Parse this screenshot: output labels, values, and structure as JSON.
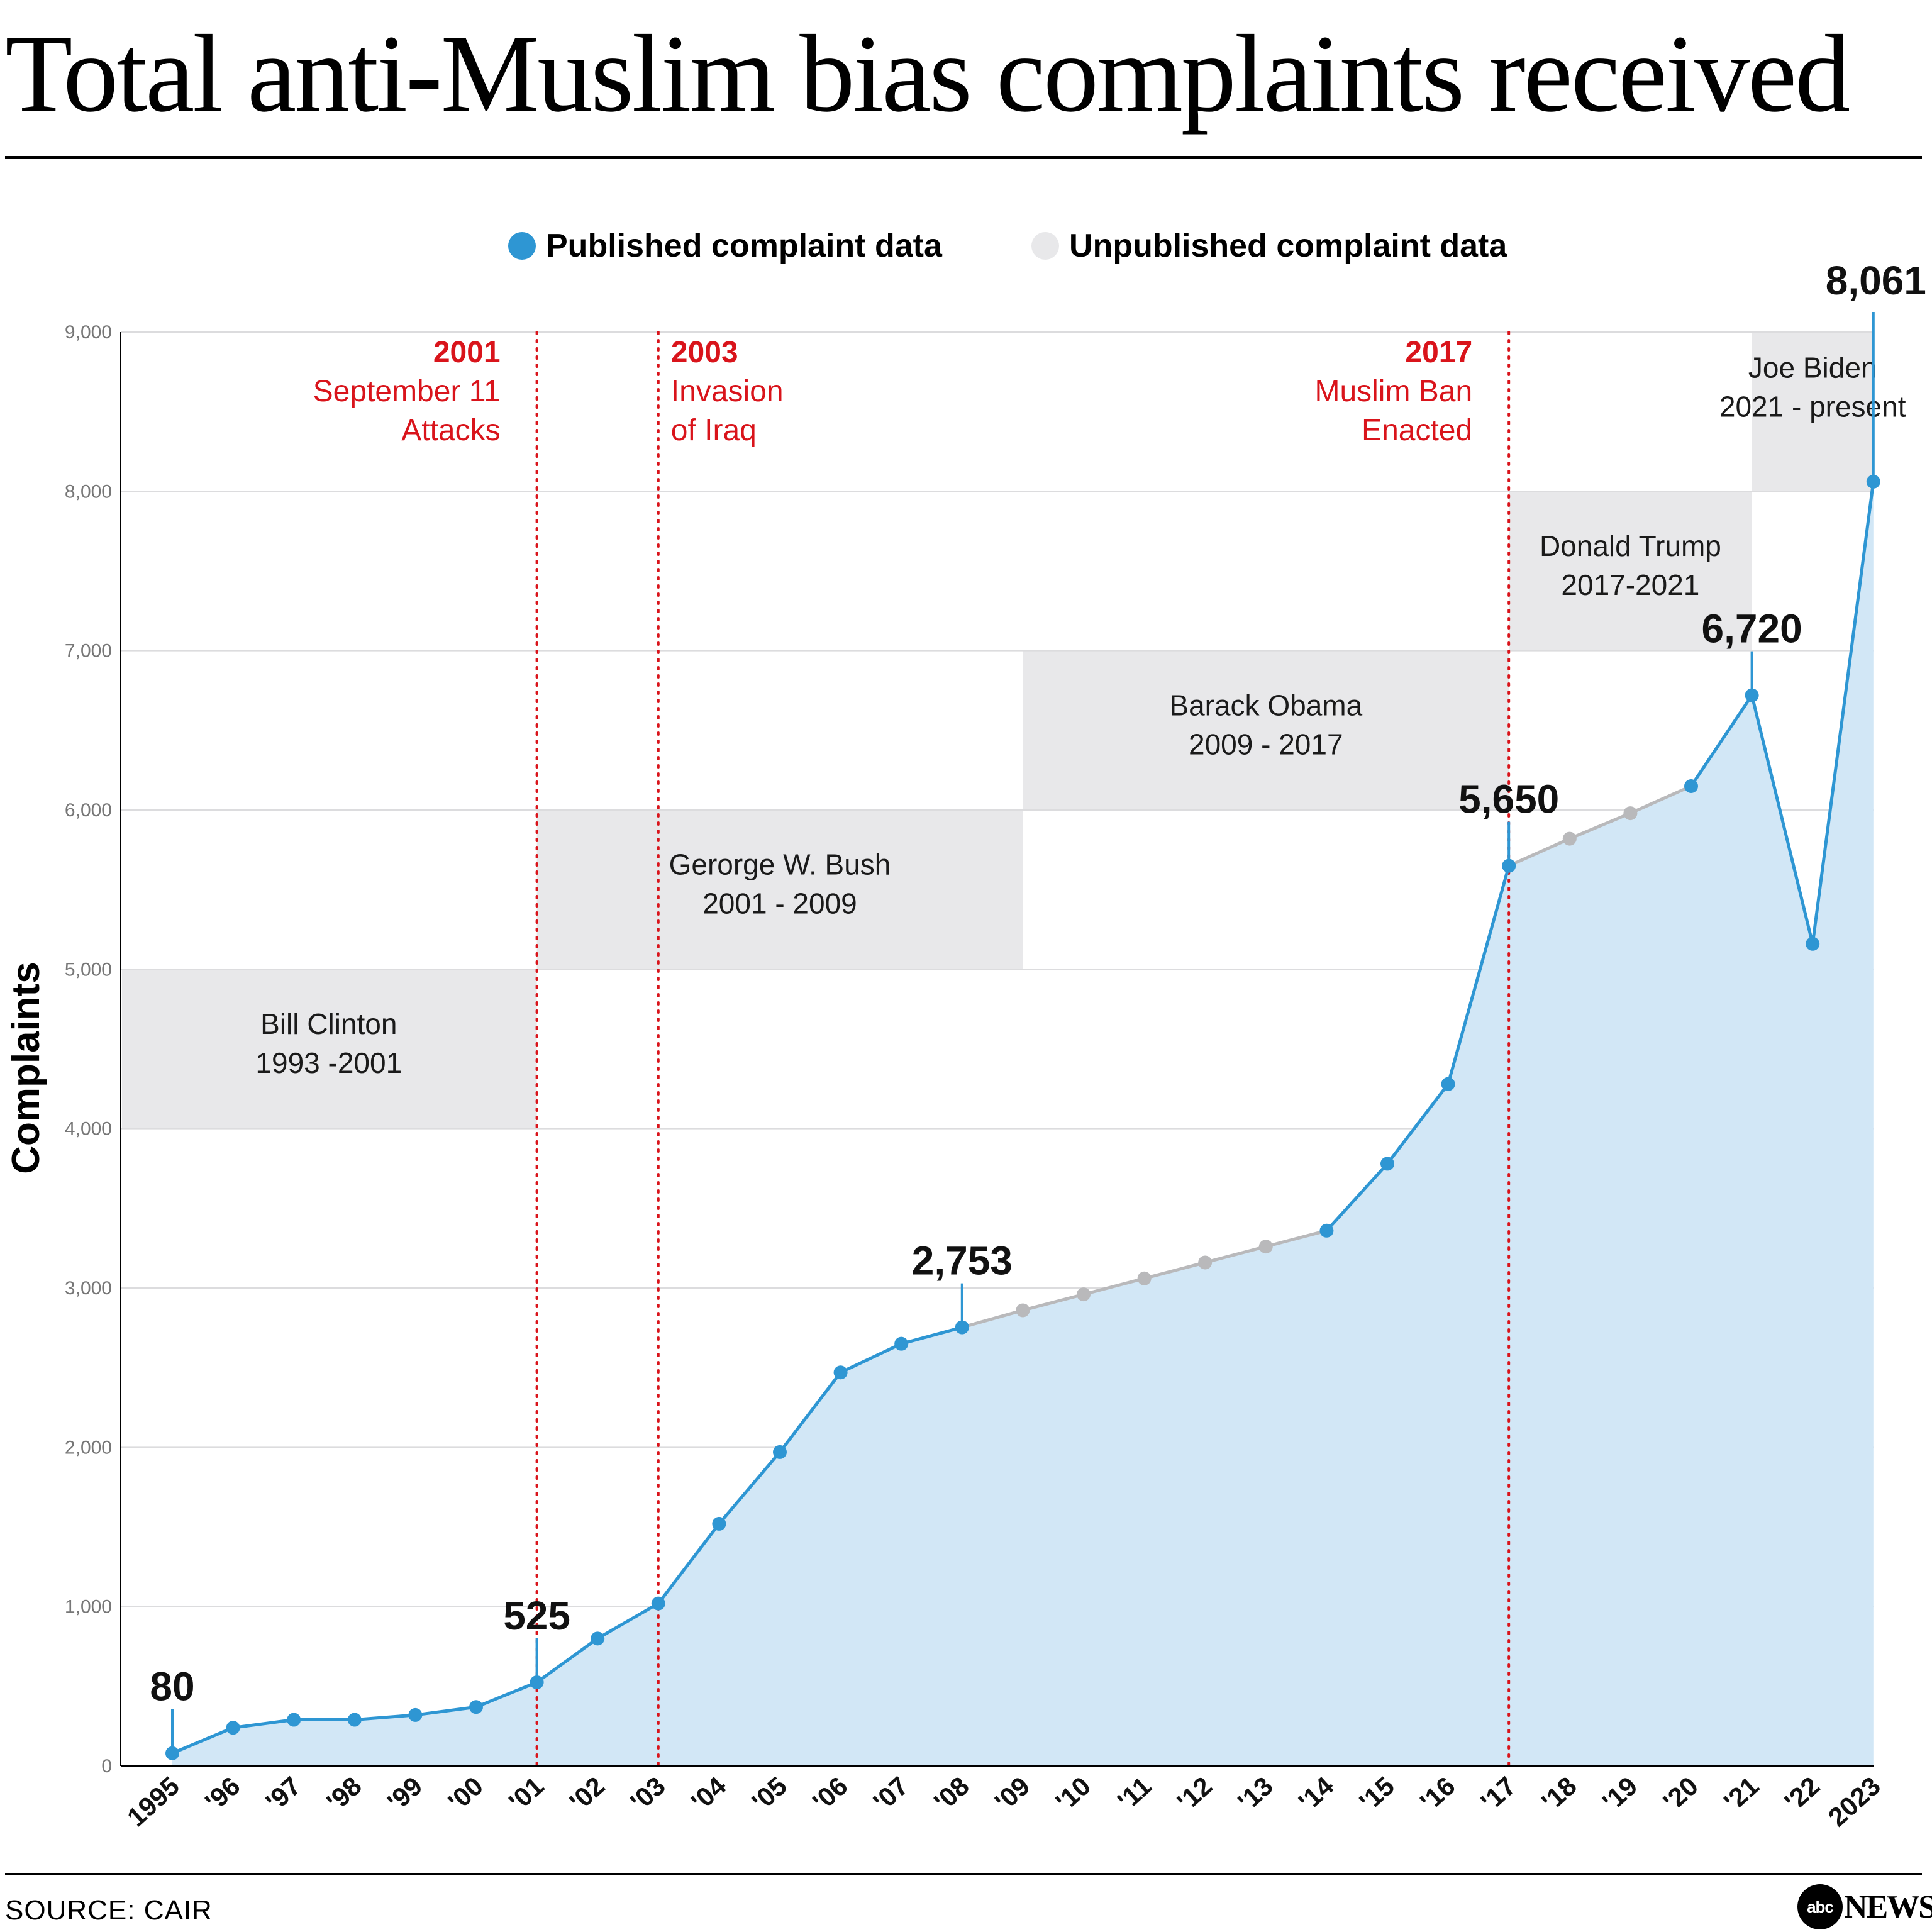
{
  "title": "Total anti-Muslim bias complaints received",
  "legend": {
    "published": "Published complaint data",
    "unpublished": "Unpublished complaint data"
  },
  "colors": {
    "published": "#2e96d3",
    "unpublished": "#b9b9bb",
    "area": "#d2e7f6",
    "band": "#e8e8ea",
    "event": "#d9141b"
  },
  "source": "SOURCE: CAIR",
  "brand": {
    "logo": "abc",
    "word": "NEWS"
  },
  "chart_data": {
    "type": "area",
    "title": "Total anti-Muslim bias complaints received",
    "xlabel": "",
    "ylabel": "Complaints",
    "ylim": [
      0,
      9000
    ],
    "yticks": [
      0,
      1000,
      2000,
      3000,
      4000,
      5000,
      6000,
      7000,
      8000,
      9000
    ],
    "ytick_labels": [
      "0",
      "1,000",
      "2,000",
      "3,000",
      "4,000",
      "5,000",
      "6,000",
      "7,000",
      "8,000",
      "9,000"
    ],
    "grid": true,
    "categories": [
      "1995",
      "'96",
      "'97",
      "'98",
      "'99",
      "'00",
      "'01",
      "'02",
      "'03",
      "'04",
      "'05",
      "'06",
      "'07",
      "'08",
      "'09",
      "'10",
      "'11",
      "'12",
      "'13",
      "'14",
      "'15",
      "'16",
      "'17",
      "'18",
      "'19",
      "'20",
      "'21",
      "'22",
      "2023"
    ],
    "years": [
      1995,
      1996,
      1997,
      1998,
      1999,
      2000,
      2001,
      2002,
      2003,
      2004,
      2005,
      2006,
      2007,
      2008,
      2009,
      2010,
      2011,
      2012,
      2013,
      2014,
      2015,
      2016,
      2017,
      2018,
      2019,
      2020,
      2021,
      2022,
      2023
    ],
    "values": [
      80,
      240,
      290,
      290,
      320,
      370,
      525,
      800,
      1020,
      1520,
      1970,
      2470,
      2650,
      2753,
      2860,
      2960,
      3060,
      3160,
      3260,
      3360,
      3780,
      4280,
      5650,
      5820,
      5980,
      6150,
      6720,
      5160,
      8061
    ],
    "published": [
      true,
      true,
      true,
      true,
      true,
      true,
      true,
      true,
      true,
      true,
      true,
      true,
      true,
      true,
      false,
      false,
      false,
      false,
      false,
      true,
      true,
      true,
      true,
      false,
      false,
      true,
      true,
      true,
      true
    ],
    "series": [
      {
        "name": "Published complaint data",
        "status": "published"
      },
      {
        "name": "Unpublished complaint data",
        "status": "unpublished"
      }
    ],
    "callouts": [
      {
        "year": 1995,
        "label": "80"
      },
      {
        "year": 2001,
        "label": "525"
      },
      {
        "year": 2008,
        "label": "2,753"
      },
      {
        "year": 2017,
        "label": "5,650"
      },
      {
        "year": 2021,
        "label": "6,720"
      },
      {
        "year": 2023,
        "label": "8,061"
      }
    ],
    "events": [
      {
        "year": 2001,
        "label_year": "2001",
        "lines": [
          "September 11",
          "Attacks"
        ],
        "align": "left-of-line"
      },
      {
        "year": 2003,
        "label_year": "2003",
        "lines": [
          "Invasion",
          "of Iraq"
        ],
        "align": "right-of-line"
      },
      {
        "year": 2017,
        "label_year": "2017",
        "lines": [
          "Muslim Ban",
          "Enacted"
        ],
        "align": "left-of-line"
      }
    ],
    "presidencies": [
      {
        "name": "Bill Clinton",
        "term": "1993 -2001",
        "x_start": 1994.1,
        "x_end": 2001,
        "y_low": 4000,
        "y_high": 5000
      },
      {
        "name": "Gerorge W. Bush",
        "term": "2001 - 2009",
        "x_start": 2001,
        "x_end": 2009,
        "y_low": 5000,
        "y_high": 6000
      },
      {
        "name": "Barack Obama",
        "term": "2009 - 2017",
        "x_start": 2009,
        "x_end": 2017,
        "y_low": 6000,
        "y_high": 7000
      },
      {
        "name": "Donald Trump",
        "term": "2017-2021",
        "x_start": 2017,
        "x_end": 2021,
        "y_low": 7000,
        "y_high": 8000
      },
      {
        "name": "Joe Biden",
        "term": "2021 - present",
        "x_start": 2021,
        "x_end": 2023,
        "y_low": 8000,
        "y_high": 9000
      }
    ]
  }
}
